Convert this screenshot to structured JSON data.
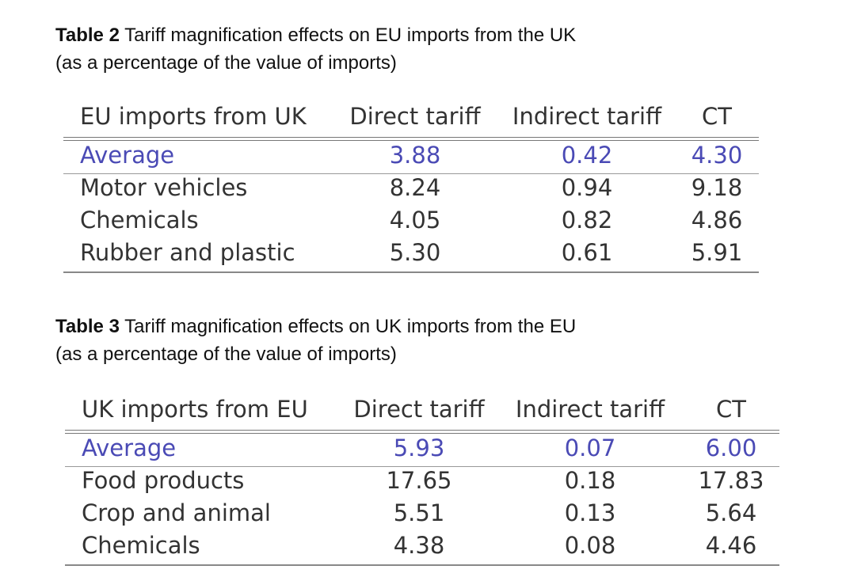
{
  "table2": {
    "caption_label": "Table 2",
    "caption_text": " Tariff magnification effects on EU imports from the UK",
    "caption_line2": "(as a percentage of the value of imports)",
    "headers": [
      "EU imports from UK",
      "Direct tariff",
      "Indirect tariff",
      "CT"
    ],
    "rows": [
      {
        "label": "Average",
        "direct": "3.88",
        "indirect": "0.42",
        "ct": "4.30",
        "highlight": true
      },
      {
        "label": "Motor vehicles",
        "direct": "8.24",
        "indirect": "0.94",
        "ct": "9.18"
      },
      {
        "label": "Chemicals",
        "direct": "4.05",
        "indirect": "0.82",
        "ct": "4.86"
      },
      {
        "label": "Rubber and plastic",
        "direct": "5.30",
        "indirect": "0.61",
        "ct": "5.91"
      }
    ]
  },
  "table3": {
    "caption_label": "Table 3",
    "caption_text": " Tariff magnification effects on UK imports from the EU",
    "caption_line2": "(as a percentage of the value of imports)",
    "headers": [
      "UK imports from EU",
      "Direct tariff",
      "Indirect tariff",
      "CT"
    ],
    "rows": [
      {
        "label": "Average",
        "direct": "5.93",
        "indirect": "0.07",
        "ct": "6.00",
        "highlight": true
      },
      {
        "label": "Food products",
        "direct": "17.65",
        "indirect": "0.18",
        "ct": "17.83"
      },
      {
        "label": "Crop and animal",
        "direct": "5.51",
        "indirect": "0.13",
        "ct": "5.64"
      },
      {
        "label": "Chemicals",
        "direct": "4.38",
        "indirect": "0.08",
        "ct": "4.46"
      }
    ]
  },
  "colors": {
    "highlight": "#4a4ab5",
    "text": "#333333"
  }
}
